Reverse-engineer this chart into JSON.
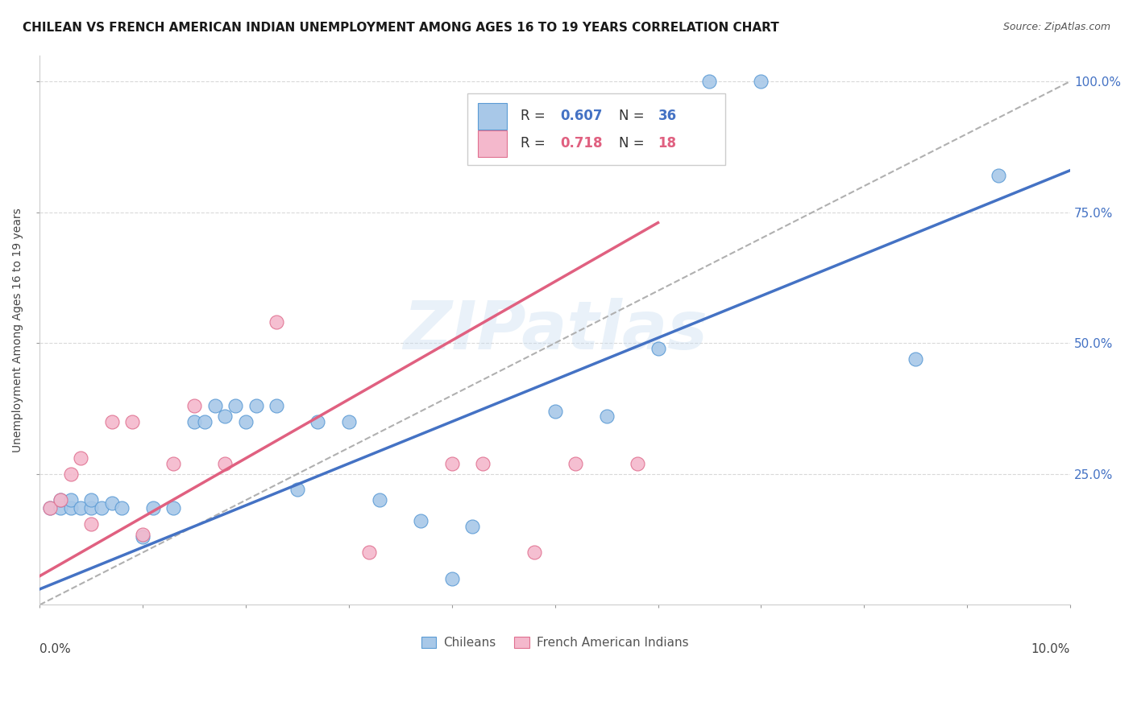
{
  "title": "CHILEAN VS FRENCH AMERICAN INDIAN UNEMPLOYMENT AMONG AGES 16 TO 19 YEARS CORRELATION CHART",
  "source": "Source: ZipAtlas.com",
  "ylabel": "Unemployment Among Ages 16 to 19 years",
  "legend_chileans": "Chileans",
  "legend_fai": "French American Indians",
  "blue_color": "#a8c8e8",
  "blue_edge_color": "#5b9bd5",
  "pink_color": "#f4b8cc",
  "pink_edge_color": "#e07090",
  "blue_line_color": "#4472c4",
  "pink_line_color": "#e06080",
  "dashed_line_color": "#b0b0b0",
  "watermark": "ZIPatlas",
  "chileans_x": [
    0.001,
    0.002,
    0.002,
    0.003,
    0.003,
    0.004,
    0.005,
    0.005,
    0.006,
    0.007,
    0.008,
    0.01,
    0.011,
    0.013,
    0.015,
    0.016,
    0.017,
    0.018,
    0.019,
    0.02,
    0.021,
    0.023,
    0.025,
    0.027,
    0.03,
    0.033,
    0.037,
    0.04,
    0.042,
    0.05,
    0.055,
    0.06,
    0.065,
    0.07,
    0.085,
    0.093
  ],
  "chileans_y": [
    0.185,
    0.185,
    0.2,
    0.185,
    0.2,
    0.185,
    0.185,
    0.2,
    0.185,
    0.195,
    0.185,
    0.13,
    0.185,
    0.185,
    0.35,
    0.35,
    0.38,
    0.36,
    0.38,
    0.35,
    0.38,
    0.38,
    0.22,
    0.35,
    0.35,
    0.2,
    0.16,
    0.05,
    0.15,
    0.37,
    0.36,
    0.49,
    1.0,
    1.0,
    0.47,
    0.82
  ],
  "fai_x": [
    0.001,
    0.002,
    0.003,
    0.004,
    0.005,
    0.007,
    0.009,
    0.01,
    0.013,
    0.015,
    0.018,
    0.023,
    0.032,
    0.04,
    0.043,
    0.048,
    0.052,
    0.058
  ],
  "fai_y": [
    0.185,
    0.2,
    0.25,
    0.28,
    0.155,
    0.35,
    0.35,
    0.135,
    0.27,
    0.38,
    0.27,
    0.54,
    0.1,
    0.27,
    0.27,
    0.1,
    0.27,
    0.27
  ],
  "blue_trendline": [
    [
      0.0,
      0.1
    ],
    [
      0.03,
      0.83
    ]
  ],
  "pink_trendline": [
    [
      0.0,
      0.06
    ],
    [
      0.055,
      0.73
    ]
  ],
  "dashed_trendline": [
    [
      0.0,
      0.1
    ],
    [
      0.0,
      1.0
    ]
  ],
  "xlim": [
    0.0,
    0.1
  ],
  "ylim": [
    0.0,
    1.05
  ],
  "yticks": [
    0.25,
    0.5,
    0.75,
    1.0
  ],
  "ytick_labels": [
    "25.0%",
    "50.0%",
    "75.0%",
    "100.0%"
  ],
  "xtick_labels": [
    "0.0%",
    "10.0%"
  ],
  "title_fontsize": 11,
  "source_fontsize": 9,
  "axis_label_fontsize": 10,
  "tick_fontsize": 11,
  "legend_r_blue": "0.607",
  "legend_n_blue": "36",
  "legend_r_pink": "0.718",
  "legend_n_pink": "18"
}
